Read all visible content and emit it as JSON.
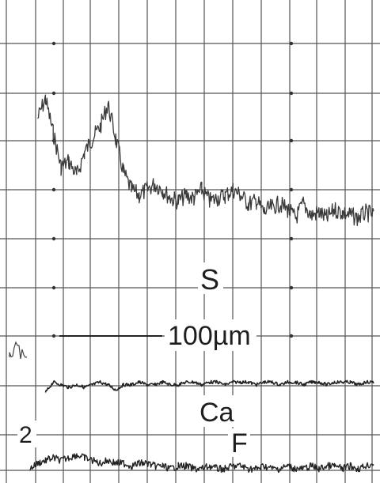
{
  "chart_data": {
    "type": "line",
    "title": "",
    "xlabel": "",
    "ylabel": "",
    "grid": true,
    "scale_bar_label": "100µm",
    "trace_labels": [
      "S",
      "Ca",
      "F"
    ],
    "side_marker": "2",
    "x": [
      0,
      10,
      20,
      30,
      40,
      50,
      60,
      70,
      80,
      90,
      100,
      110,
      120,
      130,
      140,
      150,
      160,
      170,
      180,
      190,
      200,
      210,
      220,
      230,
      240,
      250,
      260,
      270,
      280,
      290,
      300,
      310,
      320,
      330,
      340,
      350,
      360,
      370,
      380,
      390,
      400,
      410,
      420,
      430,
      440,
      450,
      460,
      470
    ],
    "series": [
      {
        "name": "S",
        "color": "#3a3a3a",
        "values": [
          null,
          null,
          null,
          null,
          75,
          82,
          70,
          58,
          60,
          55,
          63,
          68,
          72,
          80,
          68,
          56,
          50,
          48,
          50,
          52,
          50,
          47,
          46,
          48,
          47,
          50,
          46,
          47,
          48,
          50,
          48,
          45,
          46,
          42,
          44,
          45,
          43,
          40,
          45,
          41,
          42,
          40,
          43,
          42,
          41,
          40,
          42,
          41
        ]
      },
      {
        "name": "Ca",
        "color": "#222222",
        "values": [
          null,
          null,
          null,
          null,
          null,
          18,
          22,
          21,
          20,
          21,
          20,
          21,
          22,
          21,
          19,
          21,
          21,
          22,
          21,
          21,
          22,
          21,
          21,
          22,
          22,
          21,
          22,
          22,
          21,
          22,
          22,
          22,
          21,
          22,
          22,
          21,
          22,
          22,
          21,
          22,
          22,
          21,
          22,
          22,
          22,
          21,
          22,
          22
        ]
      },
      {
        "name": "F",
        "color": "#222222",
        "values": [
          null,
          null,
          null,
          2,
          4,
          5,
          6,
          5,
          6,
          7,
          6,
          5,
          4,
          5,
          4,
          4,
          3,
          4,
          4,
          3,
          3,
          2,
          3,
          3,
          2,
          2,
          3,
          2,
          2,
          3,
          3,
          2,
          2,
          3,
          2,
          2,
          3,
          2,
          2,
          3,
          2,
          3,
          3,
          2,
          3,
          2,
          3,
          4
        ]
      }
    ]
  }
}
